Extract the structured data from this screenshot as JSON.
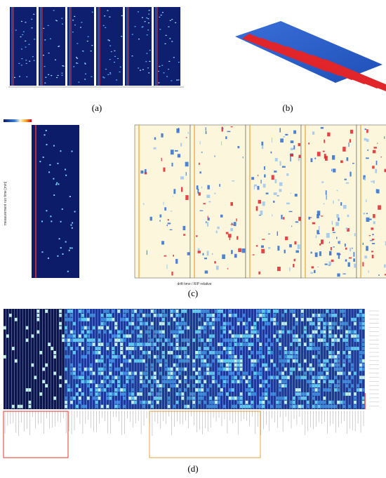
{
  "figure": {
    "panels": [
      {
        "label": "(a)"
      },
      {
        "label": "(b)"
      },
      {
        "label": "(c)"
      },
      {
        "label": "(d)"
      }
    ]
  },
  "panel_c": {
    "x_axis_label": "drift time / RIP relative",
    "y_axis_label": "measurement run time [min]"
  }
}
